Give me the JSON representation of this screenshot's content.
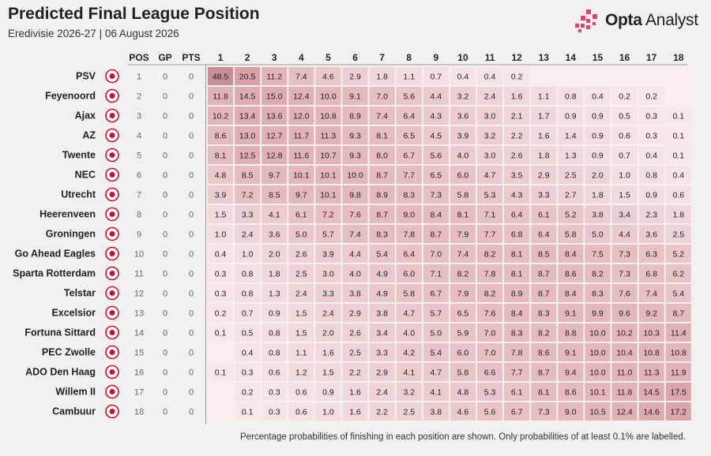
{
  "header": {
    "title": "Predicted Final League Position",
    "subtitle": "Eredivisie 2026-27 | 06 August 2026",
    "brand_bold": "Opta",
    "brand_rest": " Analyst"
  },
  "footnote": "Percentage probabilities of finishing in each position are shown. Only probabilities of at least 0.1% are labelled.",
  "colors": {
    "background": "#f3f1f0",
    "low": "#fbeeee",
    "high": "#d9a0a6",
    "max": "#c98d94",
    "brand_pink": "#e0436b"
  },
  "chart_data": {
    "type": "heatmap",
    "stat_headers": [
      "POS",
      "GP",
      "PTS"
    ],
    "positions": [
      "1",
      "2",
      "3",
      "4",
      "5",
      "6",
      "7",
      "8",
      "9",
      "10",
      "11",
      "12",
      "13",
      "14",
      "15",
      "16",
      "17",
      "18"
    ],
    "teams": [
      {
        "name": "PSV",
        "badge": "psv-crest",
        "pos": "1",
        "gp": "0",
        "pts": "0",
        "probs": [
          48.5,
          20.5,
          11.2,
          7.4,
          4.6,
          2.9,
          1.8,
          1.1,
          0.7,
          0.4,
          0.4,
          0.2,
          null,
          null,
          null,
          null,
          null,
          null
        ]
      },
      {
        "name": "Feyenoord",
        "badge": "feyenoord-crest",
        "pos": "2",
        "gp": "0",
        "pts": "0",
        "probs": [
          11.8,
          14.5,
          15.0,
          12.4,
          10.0,
          9.1,
          7.0,
          5.6,
          4.4,
          3.2,
          2.4,
          1.6,
          1.1,
          0.8,
          0.4,
          0.2,
          0.2,
          null
        ]
      },
      {
        "name": "Ajax",
        "badge": "ajax-crest",
        "pos": "3",
        "gp": "0",
        "pts": "0",
        "probs": [
          10.2,
          13.4,
          13.6,
          12.0,
          10.8,
          8.9,
          7.4,
          6.4,
          4.3,
          3.6,
          3.0,
          2.1,
          1.7,
          0.9,
          0.9,
          0.5,
          0.3,
          0.1
        ]
      },
      {
        "name": "AZ",
        "badge": "az-crest",
        "pos": "4",
        "gp": "0",
        "pts": "0",
        "probs": [
          8.6,
          13.0,
          12.7,
          11.7,
          11.3,
          9.3,
          8.1,
          6.5,
          4.5,
          3.9,
          3.2,
          2.2,
          1.6,
          1.4,
          0.9,
          0.6,
          0.3,
          0.1
        ]
      },
      {
        "name": "Twente",
        "badge": "twente-crest",
        "pos": "5",
        "gp": "0",
        "pts": "0",
        "probs": [
          8.1,
          12.5,
          12.8,
          11.6,
          10.7,
          9.3,
          8.0,
          6.7,
          5.6,
          4.0,
          3.0,
          2.6,
          1.8,
          1.3,
          0.9,
          0.7,
          0.4,
          0.1
        ]
      },
      {
        "name": "NEC",
        "badge": "nec-crest",
        "pos": "6",
        "gp": "0",
        "pts": "0",
        "probs": [
          4.8,
          8.5,
          9.7,
          10.1,
          10.1,
          10.0,
          8.7,
          7.7,
          6.5,
          6.0,
          4.7,
          3.5,
          2.9,
          2.5,
          2.0,
          1.0,
          0.8,
          0.4
        ]
      },
      {
        "name": "Utrecht",
        "badge": "utrecht-crest",
        "pos": "7",
        "gp": "0",
        "pts": "0",
        "probs": [
          3.9,
          7.2,
          8.5,
          9.7,
          10.1,
          9.8,
          8.9,
          8.3,
          7.3,
          5.8,
          5.3,
          4.3,
          3.3,
          2.7,
          1.8,
          1.5,
          0.9,
          0.6
        ]
      },
      {
        "name": "Heerenveen",
        "badge": "heerenveen-crest",
        "pos": "8",
        "gp": "0",
        "pts": "0",
        "probs": [
          1.5,
          3.3,
          4.1,
          6.1,
          7.2,
          7.6,
          8.7,
          9.0,
          8.4,
          8.1,
          7.1,
          6.4,
          6.1,
          5.2,
          3.8,
          3.4,
          2.3,
          1.8
        ]
      },
      {
        "name": "Groningen",
        "badge": "groningen-crest",
        "pos": "9",
        "gp": "0",
        "pts": "0",
        "probs": [
          1.0,
          2.4,
          3.6,
          5.0,
          5.7,
          7.4,
          8.3,
          7.8,
          8.7,
          7.9,
          7.7,
          6.8,
          6.4,
          5.8,
          5.0,
          4.4,
          3.6,
          2.5
        ]
      },
      {
        "name": "Go Ahead Eagles",
        "badge": "go-ahead-eagles-crest",
        "pos": "10",
        "gp": "0",
        "pts": "0",
        "probs": [
          0.4,
          1.0,
          2.0,
          2.6,
          3.9,
          4.4,
          5.4,
          6.4,
          7.0,
          7.4,
          8.2,
          8.1,
          8.5,
          8.4,
          7.5,
          7.3,
          6.3,
          5.2
        ]
      },
      {
        "name": "Sparta Rotterdam",
        "badge": "sparta-rotterdam-crest",
        "pos": "11",
        "gp": "0",
        "pts": "0",
        "probs": [
          0.3,
          0.8,
          1.8,
          2.5,
          3.0,
          4.0,
          4.9,
          6.0,
          7.1,
          8.2,
          7.8,
          8.1,
          8.7,
          8.6,
          8.2,
          7.3,
          6.8,
          6.2
        ]
      },
      {
        "name": "Telstar",
        "badge": "telstar-crest",
        "pos": "12",
        "gp": "0",
        "pts": "0",
        "probs": [
          0.3,
          0.8,
          1.3,
          2.4,
          3.3,
          3.8,
          4.9,
          5.8,
          6.7,
          7.9,
          8.2,
          8.9,
          8.7,
          8.4,
          8.3,
          7.6,
          7.4,
          5.4
        ]
      },
      {
        "name": "Excelsior",
        "badge": "excelsior-crest",
        "pos": "13",
        "gp": "0",
        "pts": "0",
        "probs": [
          0.2,
          0.7,
          0.9,
          1.5,
          2.4,
          2.9,
          3.8,
          4.7,
          5.7,
          6.5,
          7.6,
          8.4,
          8.3,
          9.1,
          9.9,
          9.6,
          9.2,
          8.7
        ]
      },
      {
        "name": "Fortuna Sittard",
        "badge": "fortuna-sittard-crest",
        "pos": "14",
        "gp": "0",
        "pts": "0",
        "probs": [
          0.1,
          0.5,
          0.8,
          1.5,
          2.0,
          2.6,
          3.4,
          4.0,
          5.0,
          5.9,
          7.0,
          8.3,
          8.2,
          8.8,
          10.0,
          10.2,
          10.3,
          11.4
        ]
      },
      {
        "name": "PEC Zwolle",
        "badge": "pec-zwolle-crest",
        "pos": "15",
        "gp": "0",
        "pts": "0",
        "probs": [
          null,
          0.4,
          0.8,
          1.1,
          1.6,
          2.5,
          3.3,
          4.2,
          5.4,
          6.0,
          7.0,
          7.8,
          8.6,
          9.1,
          10.0,
          10.4,
          10.8,
          10.8
        ]
      },
      {
        "name": "ADO Den Haag",
        "badge": "ado-den-haag-crest",
        "pos": "16",
        "gp": "0",
        "pts": "0",
        "probs": [
          0.1,
          0.3,
          0.6,
          1.2,
          1.5,
          2.2,
          2.9,
          4.1,
          4.7,
          5.8,
          6.6,
          7.7,
          8.7,
          9.4,
          10.0,
          11.0,
          11.3,
          11.9
        ]
      },
      {
        "name": "Willem II",
        "badge": "willem-ii-crest",
        "pos": "17",
        "gp": "0",
        "pts": "0",
        "probs": [
          null,
          0.2,
          0.3,
          0.6,
          0.9,
          1.6,
          2.4,
          3.2,
          4.1,
          4.8,
          5.3,
          6.1,
          8.1,
          8.6,
          10.1,
          11.8,
          14.5,
          17.5
        ]
      },
      {
        "name": "Cambuur",
        "badge": "cambuur-crest",
        "pos": "18",
        "gp": "0",
        "pts": "0",
        "probs": [
          null,
          0.1,
          0.3,
          0.6,
          1.0,
          1.6,
          2.2,
          2.5,
          3.8,
          4.6,
          5.6,
          6.7,
          7.3,
          9.0,
          10.5,
          12.4,
          14.6,
          17.2
        ]
      }
    ]
  }
}
